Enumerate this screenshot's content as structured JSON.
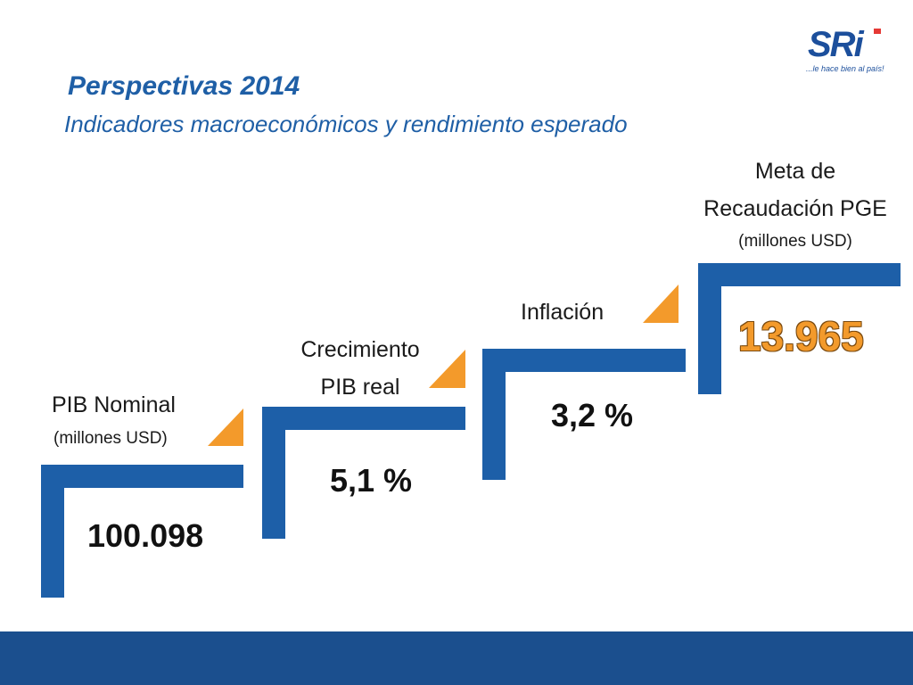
{
  "header": {
    "title": "Perspectivas 2014",
    "subtitle": "Indicadores macroeconómicos y rendimiento esperado"
  },
  "logo": {
    "text": "SRi",
    "tagline": "...le hace bien al país!"
  },
  "steps": [
    {
      "label_line1": "PIB Nominal",
      "label_line2": "(millones USD)",
      "value": "100.098"
    },
    {
      "label_line1": "Crecimiento",
      "label_line2": "PIB real",
      "value": "5,1 %"
    },
    {
      "label_line1": "Inflación",
      "value": "3,2 %"
    },
    {
      "label_line1": "Meta de",
      "label_line2": "Recaudación PGE",
      "label_line3": "(millones USD)",
      "value": "13.965"
    }
  ],
  "colors": {
    "blue": "#1d5fa8",
    "orange": "#f39a2b",
    "footer": "#1b4f8e"
  }
}
